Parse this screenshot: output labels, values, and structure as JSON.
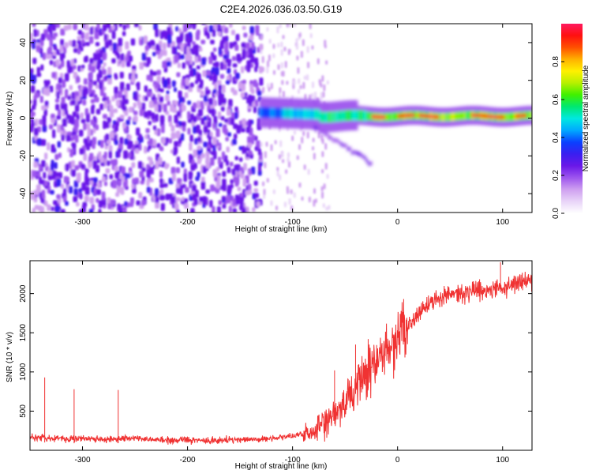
{
  "figure": {
    "title": "C2E4.2026.036.03.50.G19"
  },
  "chart_data": [
    {
      "type": "heatmap",
      "xlabel": "Height of straight line (km)",
      "ylabel": "Frequency (Hz)",
      "xlim": [
        -350,
        128
      ],
      "ylim": [
        -50,
        50
      ],
      "xticks": [
        -300,
        -200,
        -100,
        0,
        100
      ],
      "yticks": [
        -40,
        -20,
        0,
        20,
        40
      ],
      "colorbar": {
        "label": "Normalized spectral amplitude",
        "range": [
          0,
          1
        ],
        "ticks": [
          0.0,
          0.2,
          0.4,
          0.6,
          0.8
        ],
        "tick_labels": [
          "0.0",
          "0.2",
          "0.4",
          "0.6",
          "0.8"
        ],
        "colormap": [
          "#ffffff",
          "#e8d4f8",
          "#cfa0f0",
          "#9d55ee",
          "#6a18e8",
          "#3a1ff0",
          "#0a40ff",
          "#00aaff",
          "#00e8e0",
          "#00e870",
          "#40f000",
          "#b8f000",
          "#fff000",
          "#ffb000",
          "#ff5000",
          "#ff1010",
          "#ff1a60"
        ]
      },
      "description_bands": [
        {
          "x_range": [
            -350,
            -130
          ],
          "frequency_range": [
            -50,
            50
          ],
          "amplitude": "low, noisy (purple)"
        },
        {
          "x_range": [
            -130,
            -75
          ],
          "frequency_center": 2,
          "amplitude": "medium (blue to green)"
        },
        {
          "x_range": [
            -75,
            128
          ],
          "frequency_center": 1,
          "amplitude": "high (green to red)"
        }
      ]
    },
    {
      "type": "line",
      "xlabel": "Height of straight line (km)",
      "ylabel": "SNR (10 * v/v)",
      "xlim": [
        -350,
        128
      ],
      "ylim": [
        0,
        2420
      ],
      "xticks": [
        -300,
        -200,
        -100,
        0,
        100
      ],
      "yticks": [
        500,
        1000,
        1500,
        2000
      ],
      "color": "#f03232",
      "series": [
        {
          "name": "SNR",
          "x": [
            -350,
            -320,
            -300,
            -280,
            -260,
            -240,
            -220,
            -200,
            -180,
            -160,
            -140,
            -120,
            -100,
            -80,
            -70,
            -60,
            -50,
            -40,
            -30,
            -20,
            -10,
            0,
            10,
            20,
            30,
            40,
            50,
            60,
            70,
            80,
            90,
            100,
            110,
            120,
            128
          ],
          "y": [
            170,
            150,
            150,
            140,
            155,
            140,
            130,
            130,
            120,
            135,
            140,
            150,
            180,
            240,
            330,
            440,
            600,
            780,
            960,
            1150,
            1300,
            1450,
            1600,
            1750,
            1880,
            1950,
            1980,
            2000,
            2030,
            2050,
            2060,
            2080,
            2110,
            2150,
            2170
          ]
        }
      ],
      "spikes": [
        {
          "x": -336,
          "y": 930
        },
        {
          "x": -308,
          "y": 780
        },
        {
          "x": -266,
          "y": 770
        },
        {
          "x": -60,
          "y": 1020
        },
        {
          "x": -40,
          "y": 1350
        },
        {
          "x": -28,
          "y": 1420
        },
        {
          "x": 98,
          "y": 2400
        }
      ]
    }
  ]
}
